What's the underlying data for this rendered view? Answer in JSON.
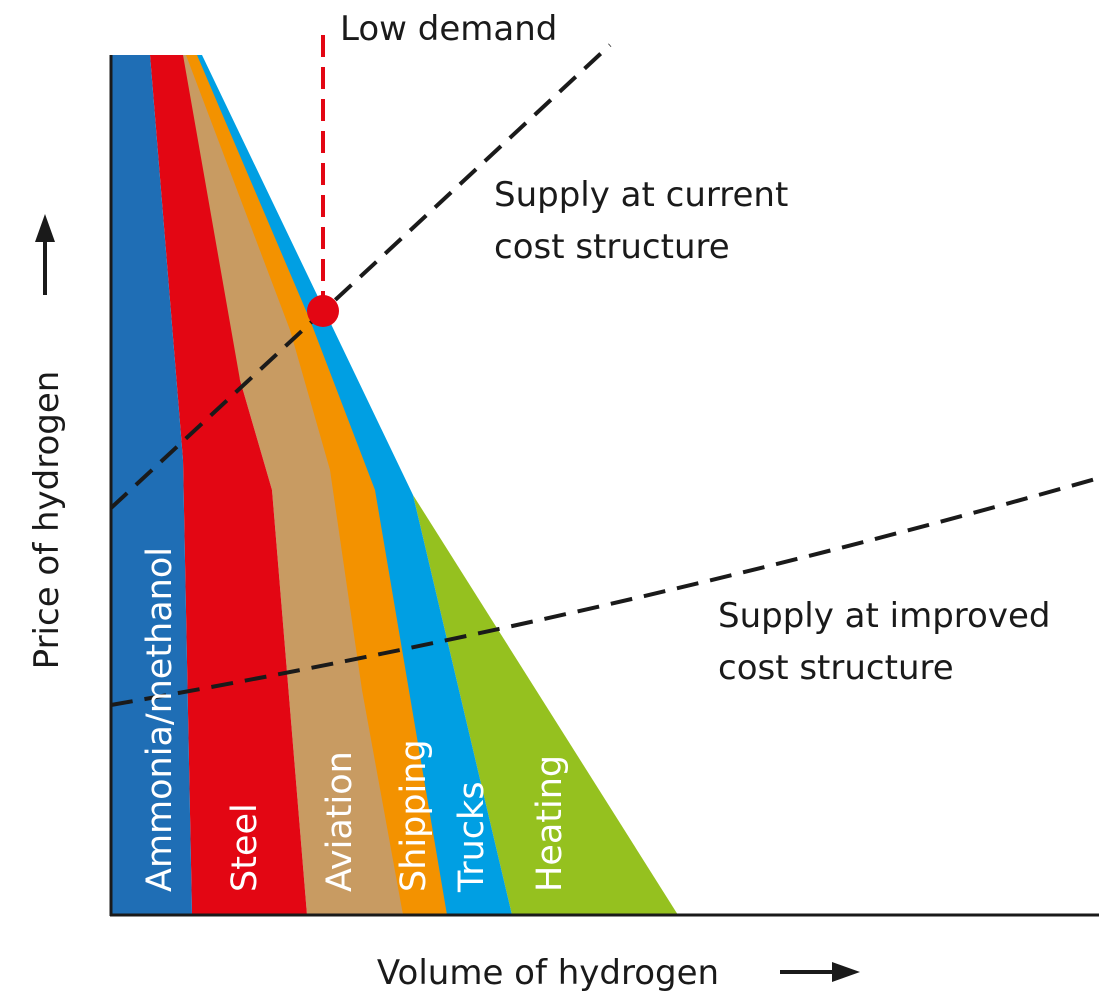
{
  "y_axis_label": "Price of hydrogen",
  "x_axis_label": "Volume of hydrogen",
  "demand_label": "Low demand",
  "supply_current": [
    "Supply at current",
    "cost structure"
  ],
  "supply_improved": [
    "Supply at improved",
    "cost structure"
  ],
  "sectors": [
    "Ammonia/methanol",
    "Steel",
    "Aviation",
    "Shipping",
    "Trucks",
    "Heating"
  ]
}
